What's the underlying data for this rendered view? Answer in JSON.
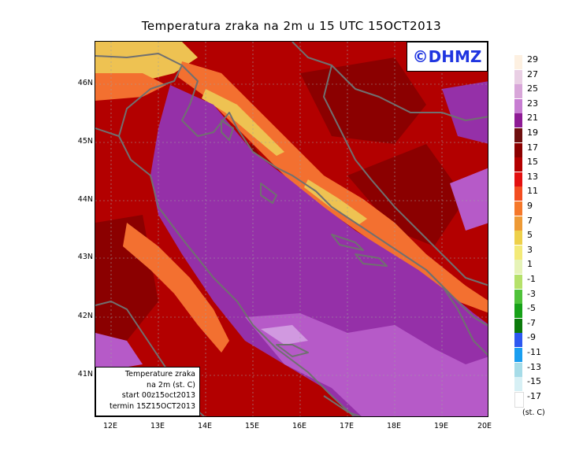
{
  "title": "Temperatura zraka na 2m u 15 UTC 15OCT2013",
  "logo": "©DHMZ",
  "info": {
    "line1": "Temperature zraka",
    "line2": "na 2m (st. C)",
    "line3": "start 00z15oct2013",
    "line4": "termin 15Z15OCT2013"
  },
  "lat_labels": [
    "46N",
    "45N",
    "44N",
    "43N",
    "42N",
    "41N"
  ],
  "lon_labels": [
    "12E",
    "13E",
    "14E",
    "15E",
    "16E",
    "17E",
    "18E",
    "19E",
    "20E"
  ],
  "legend": {
    "labels": [
      "29",
      "27",
      "25",
      "23",
      "21",
      "19",
      "17",
      "15",
      "13",
      "11",
      "9",
      "7",
      "5",
      "3",
      "1",
      "-1",
      "-3",
      "-5",
      "-7",
      "-9",
      "-11",
      "-13",
      "-15",
      "-17"
    ],
    "colors": [
      "#fdf0e1",
      "#e9cfe4",
      "#d8a6d9",
      "#c77dd2",
      "#8e1b95",
      "#6e0f0f",
      "#8b0000",
      "#b30000",
      "#e31010",
      "#f34d20",
      "#f5782a",
      "#ee9a35",
      "#eed04a",
      "#f3ea78",
      "#e6f3b7",
      "#b5e16a",
      "#4fc23a",
      "#17a118",
      "#0b7a0b",
      "#2d58f0",
      "#1a9ef0",
      "#a6dce8",
      "#d7f0f5",
      "#ffffff"
    ],
    "unit": "(st. C)"
  },
  "palette": {
    "sea": "#9530a8",
    "sea_light": "#b65ac8",
    "sea_lighter": "#d199e0",
    "land": "#b30000",
    "land_dark": "#8b0000",
    "mountain": "#f37030",
    "mountain_hi": "#eec252",
    "coast": "#707070",
    "grid": "#a0a0a0"
  }
}
